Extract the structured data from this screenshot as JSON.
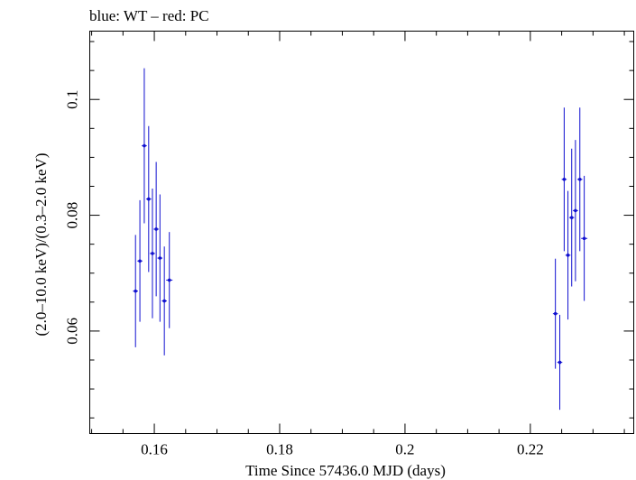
{
  "chart_data": {
    "type": "scatter",
    "title": "blue: WT – red: PC",
    "xlabel": "Time Since 57436.0 MJD (days)",
    "ylabel": "(2.0–10.0 keV)/(0.3–2.0 keV)",
    "xlim": [
      0.1497,
      0.2365
    ],
    "ylim": [
      0.0423,
      0.1118
    ],
    "x_ticks": [
      {
        "value": 0.16,
        "label": "0.16"
      },
      {
        "value": 0.18,
        "label": "0.18"
      },
      {
        "value": 0.2,
        "label": "0.2"
      },
      {
        "value": 0.22,
        "label": "0.22"
      }
    ],
    "y_ticks": [
      {
        "value": 0.06,
        "label": "0.06"
      },
      {
        "value": 0.08,
        "label": "0.08"
      },
      {
        "value": 0.1,
        "label": "0.1"
      }
    ],
    "grid": false,
    "legend": "none",
    "series": [
      {
        "color": "#1010d0",
        "points": [
          {
            "x": 0.157,
            "y": 0.0669,
            "ylo": 0.0572,
            "yhi": 0.0766,
            "xerr": 0.0004
          },
          {
            "x": 0.1577,
            "y": 0.0721,
            "ylo": 0.0616,
            "yhi": 0.0826,
            "xerr": 0.0004
          },
          {
            "x": 0.1584,
            "y": 0.092,
            "ylo": 0.0786,
            "yhi": 0.1054,
            "xerr": 0.0004
          },
          {
            "x": 0.1591,
            "y": 0.0828,
            "ylo": 0.0702,
            "yhi": 0.0954,
            "xerr": 0.0004
          },
          {
            "x": 0.1597,
            "y": 0.0734,
            "ylo": 0.0622,
            "yhi": 0.0846,
            "xerr": 0.0004
          },
          {
            "x": 0.1603,
            "y": 0.0776,
            "ylo": 0.066,
            "yhi": 0.0892,
            "xerr": 0.0004
          },
          {
            "x": 0.1609,
            "y": 0.0726,
            "ylo": 0.0616,
            "yhi": 0.0836,
            "xerr": 0.0004
          },
          {
            "x": 0.1616,
            "y": 0.0652,
            "ylo": 0.0558,
            "yhi": 0.0746,
            "xerr": 0.0004
          },
          {
            "x": 0.1624,
            "y": 0.0688,
            "ylo": 0.0605,
            "yhi": 0.0771,
            "xerr": 0.0005
          },
          {
            "x": 0.224,
            "y": 0.063,
            "ylo": 0.0535,
            "yhi": 0.0725,
            "xerr": 0.0004
          },
          {
            "x": 0.2247,
            "y": 0.0546,
            "ylo": 0.0464,
            "yhi": 0.0628,
            "xerr": 0.0004
          },
          {
            "x": 0.2254,
            "y": 0.0862,
            "ylo": 0.0738,
            "yhi": 0.0986,
            "xerr": 0.0004
          },
          {
            "x": 0.226,
            "y": 0.0731,
            "ylo": 0.062,
            "yhi": 0.0842,
            "xerr": 0.0004
          },
          {
            "x": 0.2266,
            "y": 0.0796,
            "ylo": 0.0677,
            "yhi": 0.0915,
            "xerr": 0.0004
          },
          {
            "x": 0.2272,
            "y": 0.0808,
            "ylo": 0.0686,
            "yhi": 0.093,
            "xerr": 0.0004
          },
          {
            "x": 0.2279,
            "y": 0.0862,
            "ylo": 0.0738,
            "yhi": 0.0986,
            "xerr": 0.0004
          },
          {
            "x": 0.2286,
            "y": 0.076,
            "ylo": 0.0652,
            "yhi": 0.0868,
            "xerr": 0.0005
          }
        ]
      }
    ]
  }
}
